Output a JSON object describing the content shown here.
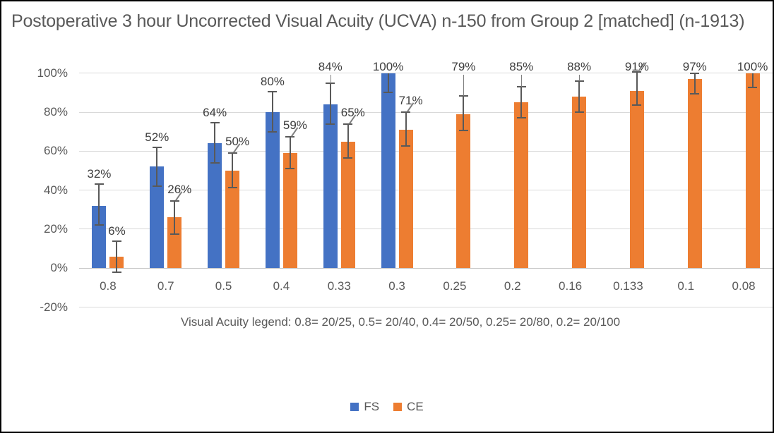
{
  "title": "Postoperative 3 hour Uncorrected Visual Acuity (UCVA) n-150 from Group 2 [matched] (n-1913)",
  "x_axis_note": "Visual Acuity legend: 0.8= 20/25, 0.5= 20/40, 0.4= 20/50, 0.25= 20/80, 0.2= 20/100",
  "colors": {
    "fs": "#4472C4",
    "ce": "#ED7D31",
    "gridline": "#D9D9D9",
    "axis_text": "#595959",
    "data_label_text": "#3D3D3D",
    "error_bar": "#595959",
    "frame_border": "#000000",
    "background": "#FFFFFF"
  },
  "chart_data": {
    "type": "bar",
    "title": "Postoperative 3 hour Uncorrected Visual Acuity (UCVA) n-150 from Group 2 [matched] (n-1913)",
    "xlabel": "Visual Acuity legend: 0.8= 20/25, 0.5= 20/40, 0.4= 20/50, 0.25= 20/80, 0.2= 20/100",
    "ylabel": "",
    "grid": true,
    "legend_position": "bottom",
    "y_axis": {
      "min": -20,
      "max": 100,
      "step": 20
    },
    "y_ticks": [
      "100%",
      "80%",
      "60%",
      "40%",
      "20%",
      "0%",
      "-20%"
    ],
    "categories": [
      "0.8",
      "0.7",
      "0.5",
      "0.4",
      "0.33",
      "0.3",
      "0.25",
      "0.2",
      "0.16",
      "0.133",
      "0.1",
      "0.08"
    ],
    "series": [
      {
        "name": "FS",
        "color": "#4472C4",
        "bars": [
          {
            "cat": "0.8",
            "value": 32,
            "label": "32%",
            "err_up": 11,
            "err_down": 10,
            "top_row": false,
            "leader": false
          },
          {
            "cat": "0.7",
            "value": 52,
            "label": "52%",
            "err_up": 10,
            "err_down": 10,
            "top_row": false,
            "leader": false
          },
          {
            "cat": "0.5",
            "value": 64,
            "label": "64%",
            "err_up": 10.5,
            "err_down": 10,
            "top_row": false,
            "leader": false
          },
          {
            "cat": "0.4",
            "value": 80,
            "label": "80%",
            "err_up": 10.5,
            "err_down": 10,
            "top_row": false,
            "leader": false
          },
          {
            "cat": "0.33",
            "value": 84,
            "label": "84%",
            "err_up": 11,
            "err_down": 10,
            "top_row": true,
            "leader": false
          },
          {
            "cat": "0.3",
            "value": 100,
            "label": "100%",
            "err_up": 0,
            "err_down": 10,
            "top_row": true,
            "leader": false
          }
        ]
      },
      {
        "name": "CE",
        "color": "#ED7D31",
        "bars": [
          {
            "cat": "0.8",
            "value": 6,
            "label": "6%",
            "err_up": 8,
            "err_down": 8,
            "top_row": false,
            "leader": false
          },
          {
            "cat": "0.7",
            "value": 26,
            "label": "26%",
            "err_up": 8.5,
            "err_down": 8.5,
            "top_row": false,
            "leader": true
          },
          {
            "cat": "0.5",
            "value": 50,
            "label": "50%",
            "err_up": 9,
            "err_down": 8.5,
            "top_row": false,
            "leader": true
          },
          {
            "cat": "0.4",
            "value": 59,
            "label": "59%",
            "err_up": 8.5,
            "err_down": 8,
            "top_row": false,
            "leader": true
          },
          {
            "cat": "0.33",
            "value": 65,
            "label": "65%",
            "err_up": 9,
            "err_down": 8.5,
            "top_row": false,
            "leader": true
          },
          {
            "cat": "0.3",
            "value": 71,
            "label": "71%",
            "err_up": 9,
            "err_down": 8.5,
            "top_row": false,
            "leader": true
          },
          {
            "cat": "0.25",
            "value": 79,
            "label": "79%",
            "err_up": 9.5,
            "err_down": 8.5,
            "top_row": true,
            "leader": false
          },
          {
            "cat": "0.2",
            "value": 85,
            "label": "85%",
            "err_up": 8,
            "err_down": 8,
            "top_row": true,
            "leader": false
          },
          {
            "cat": "0.16",
            "value": 88,
            "label": "88%",
            "err_up": 8,
            "err_down": 8,
            "top_row": true,
            "leader": false
          },
          {
            "cat": "0.133",
            "value": 91,
            "label": "91%",
            "err_up": 9.5,
            "err_down": 7.5,
            "top_row": true,
            "leader": true
          },
          {
            "cat": "0.1",
            "value": 97,
            "label": "97%",
            "err_up": 3,
            "err_down": 7.5,
            "top_row": true,
            "leader": false
          },
          {
            "cat": "0.08",
            "value": 100,
            "label": "100%",
            "err_up": 0,
            "err_down": 7.5,
            "top_row": true,
            "leader": false
          }
        ]
      }
    ]
  }
}
